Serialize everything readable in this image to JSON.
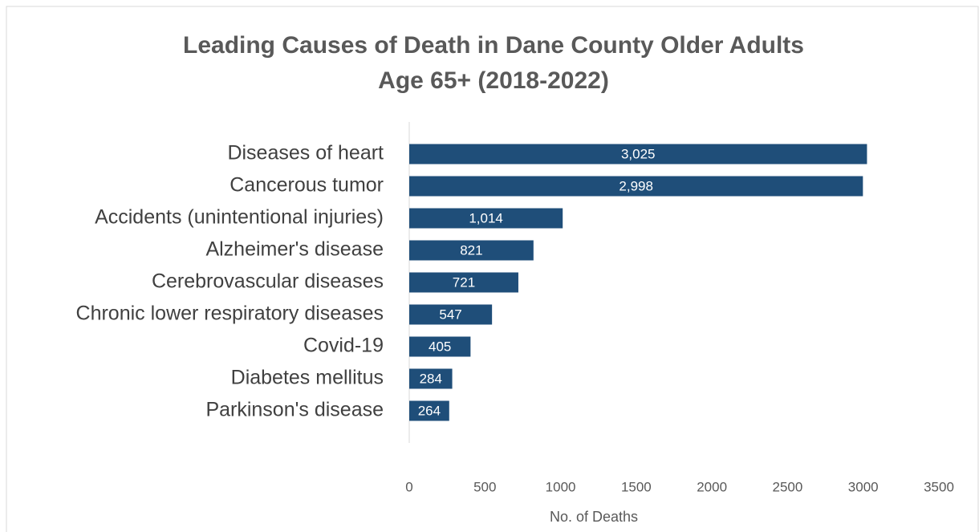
{
  "chart_data": {
    "type": "bar",
    "orientation": "horizontal",
    "title": "Leading Causes of Death in Dane County Older Adults",
    "subtitle": "Age 65+ (2018-2022)",
    "x_label": "No. of Deaths",
    "categories": [
      "Diseases of heart",
      "Cancerous tumor",
      "Accidents (unintentional injuries)",
      "Alzheimer's disease",
      "Cerebrovascular diseases",
      "Chronic lower respiratory diseases",
      "Covid-19",
      "Diabetes mellitus",
      "Parkinson's disease"
    ],
    "values": [
      3025,
      2998,
      1014,
      821,
      721,
      547,
      405,
      284,
      264
    ],
    "value_labels": [
      "3,025",
      "2,998",
      "1,014",
      "821",
      "721",
      "547",
      "405",
      "284",
      "264"
    ],
    "color": "#1f4e79",
    "xlim": [
      0,
      3500
    ],
    "xticks": [
      0,
      500,
      1000,
      1500,
      2000,
      2500,
      3000,
      3500
    ],
    "grid": false
  }
}
